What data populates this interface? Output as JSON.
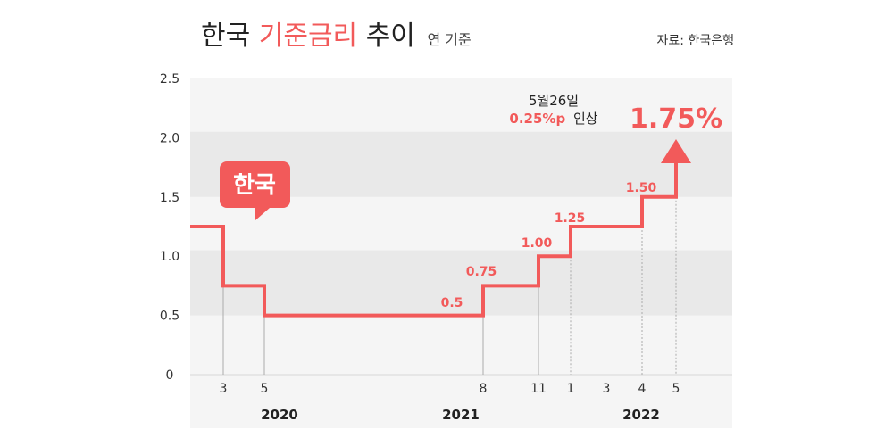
{
  "title": {
    "part1": "한국",
    "accent": "기준금리",
    "part2": "추이",
    "subtitle": "연 기준"
  },
  "source": "자료: 한국은행",
  "colors": {
    "accent": "#f25a5a",
    "band": "#e9e9e9",
    "plot_bg": "#f5f5f5",
    "text": "#222222"
  },
  "country_badge": "한국",
  "annotation": {
    "date": "5월26일",
    "change": "0.25%p",
    "action": "인상"
  },
  "final_value_label": "1.75%",
  "chart_data": {
    "type": "line",
    "step": true,
    "title": "한국 기준금리 추이",
    "subtitle": "연 기준",
    "ylim": [
      0,
      2.5
    ],
    "yticks": [
      "0",
      "0.5",
      "1.0",
      "1.5",
      "2.0",
      "2.5"
    ],
    "xtick_labels": [
      "3",
      "5",
      "8",
      "11",
      "1",
      "3",
      "4",
      "5"
    ],
    "years": [
      "2020",
      "2021",
      "2022"
    ],
    "series": [
      {
        "points": [
          {
            "date": "2020-02",
            "value": 1.25
          },
          {
            "date": "2020-03",
            "value": 0.75
          },
          {
            "date": "2020-05",
            "value": 0.5
          },
          {
            "date": "2021-08",
            "value": 0.75
          },
          {
            "date": "2021-11",
            "value": 1.0
          },
          {
            "date": "2022-01",
            "value": 1.25
          },
          {
            "date": "2022-04",
            "value": 1.5
          },
          {
            "date": "2022-05",
            "value": 1.75
          }
        ]
      }
    ],
    "data_labels": [
      "0.5",
      "0.75",
      "1.00",
      "1.25",
      "1.50"
    ]
  }
}
